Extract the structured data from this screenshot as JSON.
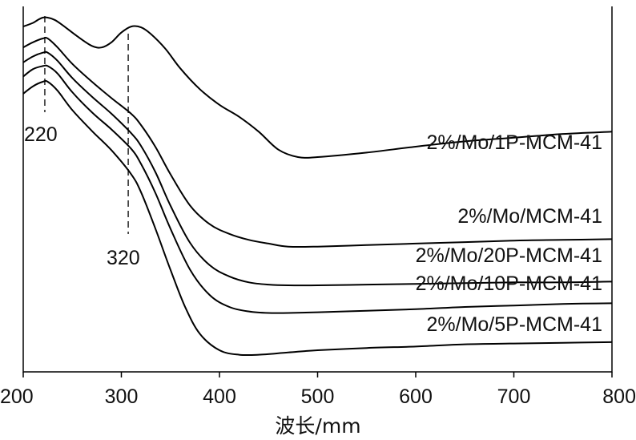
{
  "chart_data": {
    "type": "line",
    "xlabel": "波长/mm",
    "ylabel": "",
    "xlim": [
      200,
      800
    ],
    "x_ticks": [
      200,
      300,
      400,
      500,
      600,
      700,
      800
    ],
    "y_ticks_shown": false,
    "grid": false,
    "legend": "none (series labelled inline at right)",
    "annotations": [
      {
        "text": "220",
        "x": 222
      },
      {
        "text": "320",
        "x": 307
      }
    ],
    "series": [
      {
        "name": "2%/Mo/1P-MCM-41",
        "points": [
          [
            200,
            -0.12
          ],
          [
            210,
            -0.07
          ],
          [
            215,
            -0.03
          ],
          [
            220,
            0.0
          ],
          [
            225,
            0.0
          ],
          [
            232,
            -0.03
          ],
          [
            240,
            -0.1
          ],
          [
            255,
            -0.25
          ],
          [
            270,
            -0.38
          ],
          [
            280,
            -0.4
          ],
          [
            290,
            -0.33
          ],
          [
            300,
            -0.2
          ],
          [
            310,
            -0.12
          ],
          [
            320,
            -0.13
          ],
          [
            330,
            -0.22
          ],
          [
            345,
            -0.42
          ],
          [
            360,
            -0.68
          ],
          [
            380,
            -0.96
          ],
          [
            400,
            -1.17
          ],
          [
            420,
            -1.33
          ],
          [
            440,
            -1.53
          ],
          [
            460,
            -1.77
          ],
          [
            480,
            -1.87
          ],
          [
            500,
            -1.87
          ],
          [
            550,
            -1.81
          ],
          [
            600,
            -1.73
          ],
          [
            650,
            -1.66
          ],
          [
            700,
            -1.61
          ],
          [
            750,
            -1.56
          ],
          [
            800,
            -1.53
          ]
        ]
      },
      {
        "name": "2%/Mo/MCM-41",
        "points": [
          [
            200,
            -0.4
          ],
          [
            210,
            -0.33
          ],
          [
            220,
            -0.28
          ],
          [
            225,
            -0.28
          ],
          [
            235,
            -0.4
          ],
          [
            250,
            -0.62
          ],
          [
            270,
            -0.86
          ],
          [
            290,
            -1.08
          ],
          [
            310,
            -1.29
          ],
          [
            320,
            -1.44
          ],
          [
            335,
            -1.74
          ],
          [
            350,
            -2.1
          ],
          [
            370,
            -2.52
          ],
          [
            390,
            -2.77
          ],
          [
            410,
            -2.9
          ],
          [
            430,
            -2.98
          ],
          [
            450,
            -3.03
          ],
          [
            470,
            -3.07
          ],
          [
            500,
            -3.07
          ],
          [
            550,
            -3.05
          ],
          [
            600,
            -3.03
          ],
          [
            650,
            -3.01
          ],
          [
            700,
            -2.99
          ],
          [
            750,
            -2.98
          ],
          [
            800,
            -2.97
          ]
        ]
      },
      {
        "name": "2%/Mo/20P-MCM-41",
        "points": [
          [
            200,
            -0.6
          ],
          [
            210,
            -0.52
          ],
          [
            220,
            -0.47
          ],
          [
            225,
            -0.47
          ],
          [
            235,
            -0.58
          ],
          [
            250,
            -0.81
          ],
          [
            270,
            -1.06
          ],
          [
            290,
            -1.29
          ],
          [
            310,
            -1.55
          ],
          [
            320,
            -1.72
          ],
          [
            335,
            -2.08
          ],
          [
            350,
            -2.52
          ],
          [
            370,
            -3.02
          ],
          [
            390,
            -3.32
          ],
          [
            410,
            -3.47
          ],
          [
            430,
            -3.55
          ],
          [
            450,
            -3.58
          ],
          [
            470,
            -3.59
          ],
          [
            500,
            -3.59
          ],
          [
            550,
            -3.58
          ],
          [
            600,
            -3.57
          ],
          [
            650,
            -3.56
          ],
          [
            700,
            -3.55
          ],
          [
            750,
            -3.55
          ],
          [
            800,
            -3.54
          ]
        ]
      },
      {
        "name": "2%/Mo/10P-MCM-41",
        "points": [
          [
            200,
            -0.79
          ],
          [
            210,
            -0.69
          ],
          [
            220,
            -0.65
          ],
          [
            225,
            -0.65
          ],
          [
            235,
            -0.75
          ],
          [
            250,
            -1.0
          ],
          [
            270,
            -1.27
          ],
          [
            290,
            -1.5
          ],
          [
            310,
            -1.76
          ],
          [
            320,
            -1.96
          ],
          [
            335,
            -2.36
          ],
          [
            350,
            -2.83
          ],
          [
            370,
            -3.38
          ],
          [
            390,
            -3.72
          ],
          [
            410,
            -3.88
          ],
          [
            430,
            -3.94
          ],
          [
            450,
            -3.96
          ],
          [
            470,
            -3.96
          ],
          [
            500,
            -3.95
          ],
          [
            550,
            -3.93
          ],
          [
            600,
            -3.91
          ],
          [
            650,
            -3.88
          ],
          [
            700,
            -3.86
          ],
          [
            750,
            -3.84
          ],
          [
            800,
            -3.83
          ]
        ]
      },
      {
        "name": "2%/Mo/5P-MCM-41",
        "points": [
          [
            200,
            -1.02
          ],
          [
            210,
            -0.92
          ],
          [
            220,
            -0.86
          ],
          [
            225,
            -0.86
          ],
          [
            235,
            -0.98
          ],
          [
            250,
            -1.24
          ],
          [
            270,
            -1.52
          ],
          [
            290,
            -1.78
          ],
          [
            310,
            -2.1
          ],
          [
            320,
            -2.34
          ],
          [
            335,
            -2.84
          ],
          [
            350,
            -3.38
          ],
          [
            365,
            -3.88
          ],
          [
            380,
            -4.24
          ],
          [
            400,
            -4.46
          ],
          [
            420,
            -4.52
          ],
          [
            440,
            -4.52
          ],
          [
            470,
            -4.49
          ],
          [
            500,
            -4.46
          ],
          [
            550,
            -4.43
          ],
          [
            600,
            -4.41
          ],
          [
            650,
            -4.38
          ],
          [
            700,
            -4.37
          ],
          [
            750,
            -4.36
          ],
          [
            800,
            -4.35
          ]
        ]
      }
    ]
  }
}
